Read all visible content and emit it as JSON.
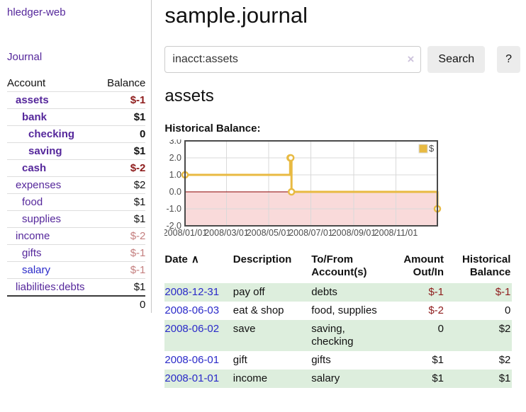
{
  "app": {
    "title": "hledger-web"
  },
  "sidebar": {
    "journal_link": "Journal",
    "account_header": "Account",
    "balance_header": "Balance",
    "accounts": [
      {
        "name": "assets",
        "indent": 1,
        "bold": true,
        "balance": "$-1",
        "neg": "strong"
      },
      {
        "name": "bank",
        "indent": 2,
        "bold": true,
        "balance": "$1"
      },
      {
        "name": "checking",
        "indent": 3,
        "bold": true,
        "balance": "0"
      },
      {
        "name": "saving",
        "indent": 3,
        "bold": true,
        "balance": "$1"
      },
      {
        "name": "cash",
        "indent": 2,
        "bold": true,
        "balance": "$-2",
        "neg": "strong"
      },
      {
        "name": "expenses",
        "indent": 1,
        "bold": false,
        "balance": "$2"
      },
      {
        "name": "food",
        "indent": 2,
        "bold": false,
        "balance": "$1"
      },
      {
        "name": "supplies",
        "indent": 2,
        "bold": false,
        "balance": "$1"
      },
      {
        "name": "income",
        "indent": 1,
        "bold": false,
        "balance": "$-2",
        "neg": "soft"
      },
      {
        "name": "gifts",
        "indent": 2,
        "bold": false,
        "balance": "$-1",
        "neg": "soft"
      },
      {
        "name": "salary",
        "indent": 2,
        "bold": false,
        "balance": "$-1",
        "neg": "soft",
        "blue": true
      },
      {
        "name": "liabilities:debts",
        "indent": 1,
        "bold": false,
        "balance": "$1"
      }
    ],
    "total": "0"
  },
  "main": {
    "title": "sample.journal",
    "search": {
      "value": "inacct:assets",
      "clear_icon": "×",
      "button": "Search",
      "help_button": "?"
    },
    "account_heading": "assets",
    "chart_label": "Historical Balance:"
  },
  "chart_data": {
    "type": "line",
    "step": true,
    "title": "Historical Balance:",
    "legend": "$",
    "legend_position": "top-right",
    "x_range": [
      "2008-01-01",
      "2008-12-31"
    ],
    "x_ticks": [
      "2008/01/01",
      "2008/03/01",
      "2008/05/01",
      "2008/07/01",
      "2008/09/01",
      "2008/11/01"
    ],
    "y_ticks": [
      "3.0",
      "2.0",
      "1.0",
      "0.0",
      "-1.0",
      "-2.0"
    ],
    "ylim": [
      -2,
      3
    ],
    "series": [
      {
        "name": "$",
        "points": [
          [
            "2008-01-01",
            1
          ],
          [
            "2008-06-01",
            2
          ],
          [
            "2008-06-02",
            2
          ],
          [
            "2008-06-03",
            0
          ],
          [
            "2008-12-31",
            -1
          ]
        ]
      }
    ],
    "line_color": "#e8ba42",
    "marker_fill": "#ffffff",
    "negative_fill": "#f9dada",
    "zero_line_color": "#8b0000",
    "grid_color": "#d9d9d9",
    "border_color": "#4a4a4a"
  },
  "register": {
    "headers": {
      "date": "Date",
      "description": "Description",
      "accounts": "To/From Account(s)",
      "amount": "Amount Out/In",
      "balance": "Historical Balance"
    },
    "sort_icon": "∧",
    "rows": [
      {
        "date": "2008-12-31",
        "description": "pay off",
        "accounts": "debts",
        "amount": "$-1",
        "amount_neg": true,
        "balance": "$-1",
        "balance_neg": true
      },
      {
        "date": "2008-06-03",
        "description": "eat & shop",
        "accounts": "food, supplies",
        "amount": "$-2",
        "amount_neg": true,
        "balance": "0",
        "balance_neg": false
      },
      {
        "date": "2008-06-02",
        "description": "save",
        "accounts": "saving, checking",
        "amount": "0",
        "amount_neg": false,
        "balance": "$2",
        "balance_neg": false
      },
      {
        "date": "2008-06-01",
        "description": "gift",
        "accounts": "gifts",
        "amount": "$1",
        "amount_neg": false,
        "balance": "$2",
        "balance_neg": false
      },
      {
        "date": "2008-01-01",
        "description": "income",
        "accounts": "salary",
        "amount": "$1",
        "amount_neg": false,
        "balance": "$1",
        "balance_neg": false
      }
    ]
  },
  "colors": {
    "link_purple": "#55279b",
    "link_blue": "#2a2ac9",
    "negative_strong": "#8e1c1c",
    "negative_soft": "#c47f7f",
    "row_stripe_green": "#ddeedd",
    "button_gray": "#ececec",
    "chart_line_gold": "#e8ba42",
    "chart_negative_pink": "#f9dada",
    "chart_zero_line": "#8b0000"
  }
}
